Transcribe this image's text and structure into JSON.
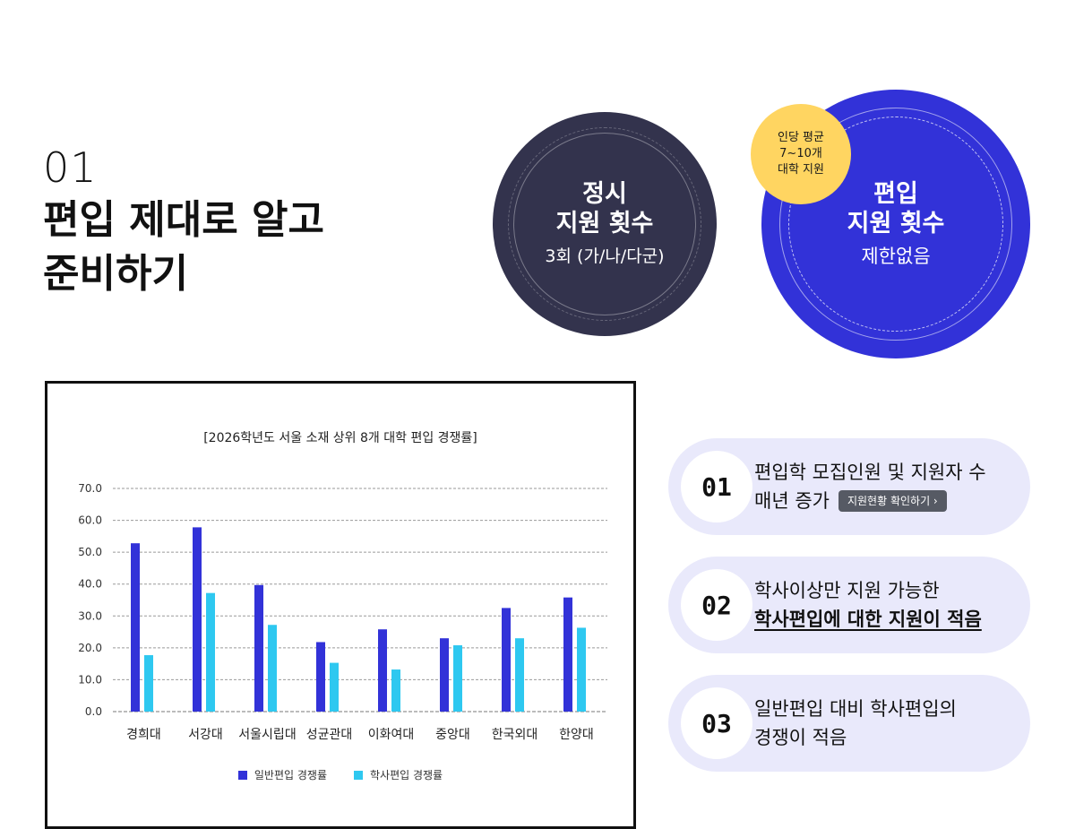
{
  "heading": {
    "number": "01",
    "title_line1": "편입 제대로 알고",
    "title_line2": "준비하기"
  },
  "circle_regular": {
    "title_line1": "정시",
    "title_line2": "지원 횟수",
    "sub": "3회 (가/나/다군)"
  },
  "circle_transfer": {
    "title_line1": "편입",
    "title_line2": "지원 횟수",
    "sub": "제한없음"
  },
  "badge": {
    "line1": "인당 평균",
    "line2": "7~10개",
    "line3": "대학 지원"
  },
  "cards": [
    {
      "number": "01",
      "line1": "편입학 모집인원 및 지원자 수",
      "line2": "매년 증가",
      "button": "지원현황 확인하기 ›"
    },
    {
      "number": "02",
      "line1": "학사이상만 지원 가능한",
      "line2": "학사편입에 대한 지원이 적음"
    },
    {
      "number": "03",
      "line1": "일반편입 대비 학사편입의",
      "line2": "경쟁이 적음"
    }
  ],
  "colors": {
    "dark_circle": "#33334d",
    "blue_circle": "#3232d8",
    "badge": "#ffd561",
    "series_general": "#3232d8",
    "series_bachelor": "#2ec8f0",
    "card_bg": "#e9e9fb"
  },
  "chart_data": {
    "type": "bar",
    "title": "[2026학년도 서울 소재 상위 8개 대학 편입 경쟁률]",
    "categories": [
      "경희대",
      "서강대",
      "서울시립대",
      "성균관대",
      "이화여대",
      "중앙대",
      "한국외대",
      "한양대"
    ],
    "series": [
      {
        "name": "일반편입 경쟁률",
        "values": [
          52.8,
          57.8,
          39.7,
          21.8,
          25.8,
          23.0,
          32.5,
          35.8
        ]
      },
      {
        "name": "학사편입 경쟁률",
        "values": [
          17.7,
          37.2,
          27.2,
          15.3,
          13.2,
          20.8,
          23.0,
          26.3
        ]
      }
    ],
    "yticks": [
      "0.0",
      "10.0",
      "20.0",
      "30.0",
      "40.0",
      "50.0",
      "60.0",
      "70.0"
    ],
    "ylim": [
      0,
      70
    ],
    "grid": true,
    "legend": "bottom"
  }
}
